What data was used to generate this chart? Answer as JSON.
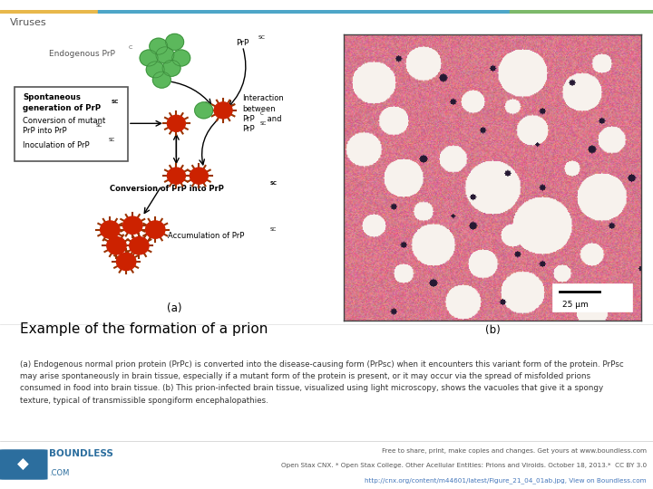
{
  "title": "Viruses",
  "header_bar_colors": [
    "#e8b84b",
    "#4da6c8",
    "#7db96a"
  ],
  "bg_color": "#eeeeee",
  "main_bg": "#ffffff",
  "heading": "Example of the formation of a prion",
  "caption_line1": "(a) Endogenous normal prion protein (PrPc) is converted into the disease-causing form (PrPsc) when it encounters this variant form of the protein. PrPsc",
  "caption_line2": "may arise spontaneously in brain tissue, especially if a mutant form of the protein is present, or it may occur via the spread of misfolded prions",
  "caption_line3": "consumed in food into brain tissue. (b) This prion-infected brain tissue, visualized using light microscopy, shows the vacuoles that give it a spongy",
  "caption_line4": "texture, typical of transmissible spongiform encephalopathies.",
  "footer_left": "Free to share, print, make copies and changes. Get yours at www.boundless.com",
  "footer_center": "Open Stax CNX. * Open Stax College. Other Acellular Entities: Prions and Viroids. October 18, 2013.*  CC BY 3.0",
  "footer_url": "http://cnx.org/content/m44601/latest/Figure_21_04_01ab.jpg, View on Boundless.com",
  "label_a": "(a)",
  "label_b": "(b)",
  "green_color": "#5cb85c",
  "red_color": "#cc2200",
  "dark_red": "#8B0000",
  "spike_color": "#993300"
}
